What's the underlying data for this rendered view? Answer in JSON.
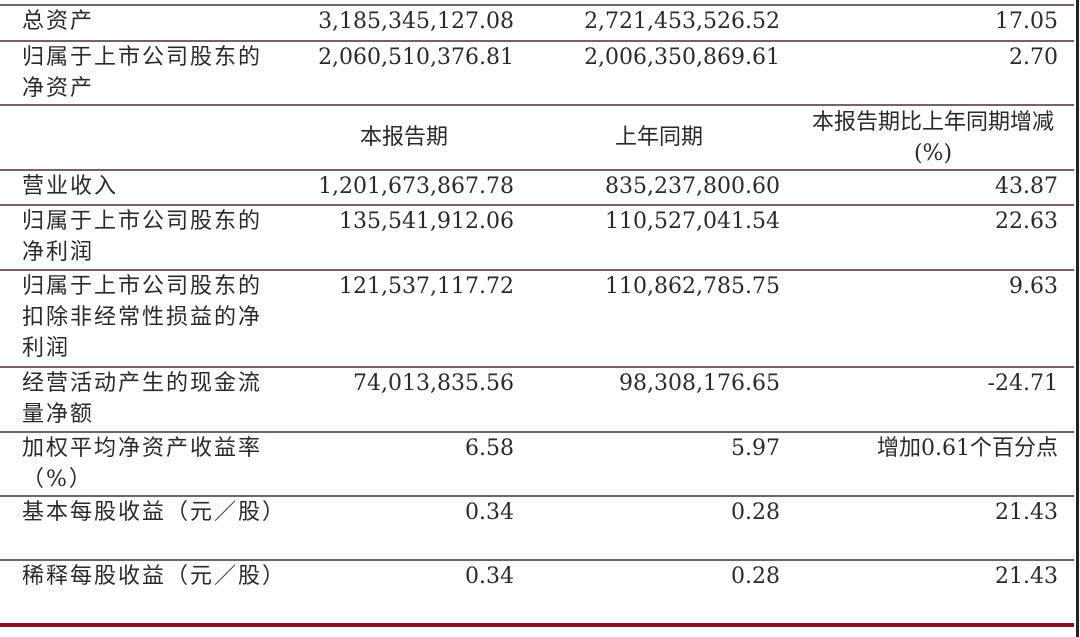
{
  "table": {
    "rows_top": [
      {
        "label": "总资产",
        "current": "3,185,345,127.08",
        "previous": "2,721,453,526.52",
        "change": "17.05"
      },
      {
        "label": "归属于上市公司股东的净资产",
        "current": "2,060,510,376.81",
        "previous": "2,006,350,869.61",
        "change": "2.70"
      }
    ],
    "header": {
      "current": "本报告期",
      "previous": "上年同期",
      "change": "本报告期比上年同期增减(%)"
    },
    "rows_bottom": [
      {
        "label": "营业收入",
        "current": "1,201,673,867.78",
        "previous": "835,237,800.60",
        "change": "43.87"
      },
      {
        "label": "归属于上市公司股东的净利润",
        "current": "135,541,912.06",
        "previous": "110,527,041.54",
        "change": "22.63"
      },
      {
        "label": "归属于上市公司股东的扣除非经常性损益的净利润",
        "current": "121,537,117.72",
        "previous": "110,862,785.75",
        "change": "9.63"
      },
      {
        "label": "经营活动产生的现金流量净额",
        "current": "74,013,835.56",
        "previous": "98,308,176.65",
        "change": "-24.71"
      },
      {
        "label": "加权平均净资产收益率（%）",
        "current": "6.58",
        "previous": "5.97",
        "change": "增加0.61个百分点"
      },
      {
        "label": "基本每股收益（元／股）",
        "current": "0.34",
        "previous": "0.28",
        "change": "21.43"
      },
      {
        "label": "稀释每股收益（元／股）",
        "current": "0.34",
        "previous": "0.28",
        "change": "21.43"
      }
    ]
  },
  "colors": {
    "rule": "#7a6262",
    "bottom_rule": "#8a0f1e"
  }
}
